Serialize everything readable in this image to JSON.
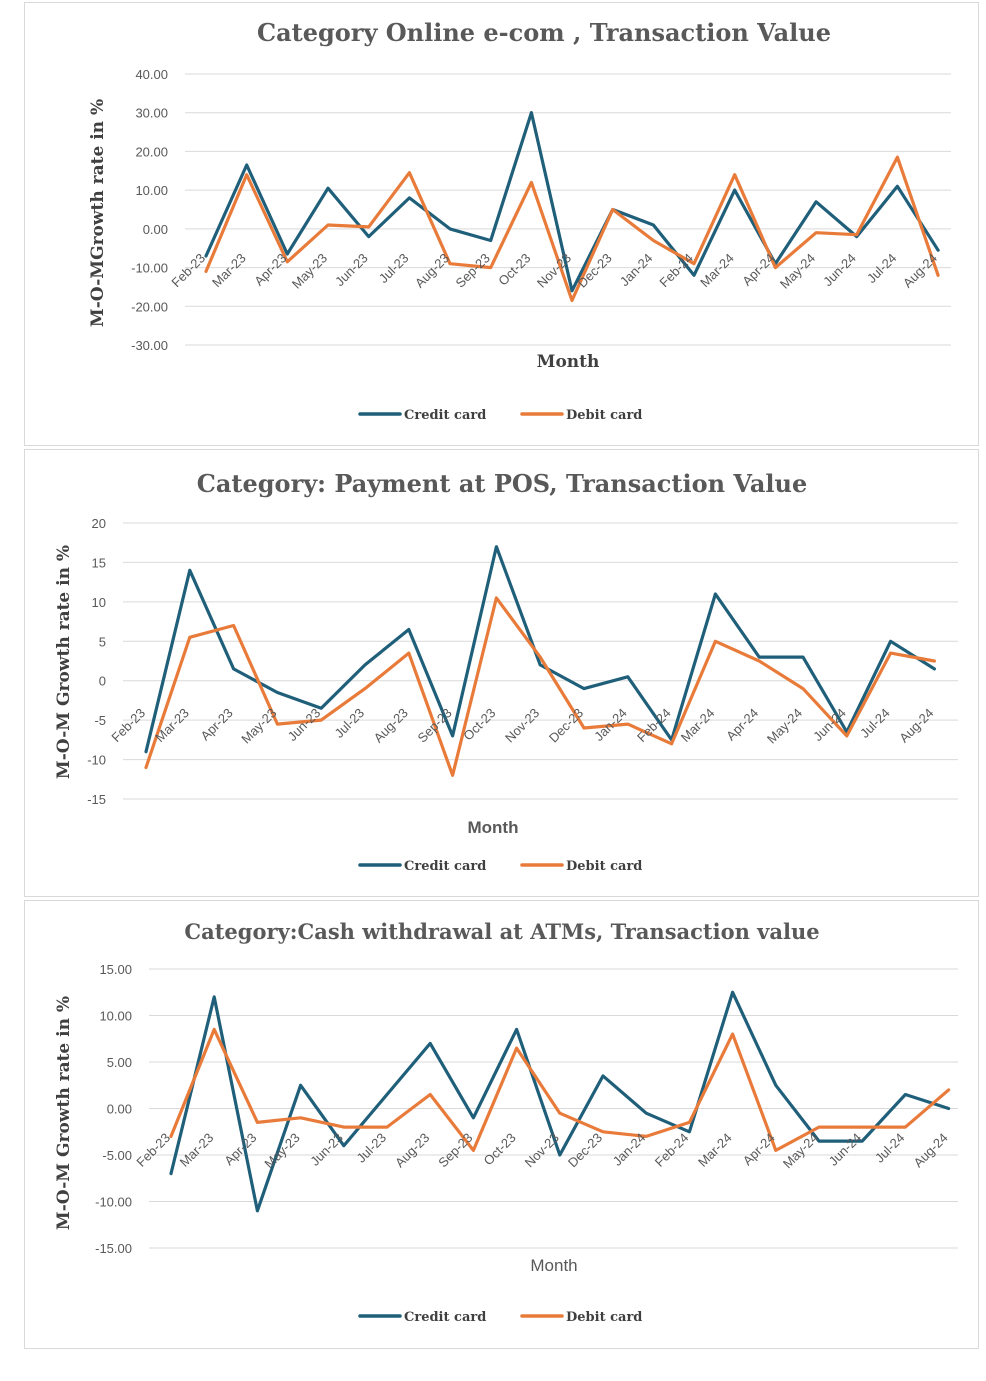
{
  "palette": {
    "credit": "#1f5f7a",
    "debit": "#e97b3a"
  },
  "chart_data": [
    {
      "type": "line",
      "title": "Category Online e-com , Transaction Value",
      "xlabel": "Month",
      "ylabel": "M-O-MGrowth rate in %",
      "ylim": [
        -30,
        40
      ],
      "yticks": [
        40,
        30,
        20,
        10,
        0,
        -10,
        -20,
        -30
      ],
      "ytick_labels": [
        "40.00",
        "30.00",
        "20.00",
        "10.00",
        "0.00",
        "-10.00",
        "-20.00",
        "-30.00"
      ],
      "grid": true,
      "legend": "bottom",
      "categories": [
        "Feb-23",
        "Mar-23",
        "Apr-23",
        "May-23",
        "Jun-23",
        "Jul-23",
        "Aug-23",
        "Sep-23",
        "Oct-23",
        "Nov-23",
        "Dec-23",
        "Jan-24",
        "Feb-24",
        "Mar-24",
        "Apr-24",
        "May-24",
        "Jun-24",
        "Jul-24",
        "Aug-24"
      ],
      "series": [
        {
          "name": "Credit card",
          "color": "#1f5f7a",
          "values": [
            -7,
            16.5,
            -6.5,
            10.5,
            -2,
            8,
            0,
            -3,
            30,
            -16,
            5,
            1,
            -12,
            10,
            -9,
            7,
            -2,
            11,
            -5.5
          ]
        },
        {
          "name": "Debit card",
          "color": "#e97b3a",
          "values": [
            -11,
            14,
            -8.5,
            1,
            0.5,
            14.5,
            -9,
            -10,
            12,
            -18.5,
            5,
            -3,
            -9,
            14,
            -10,
            -1,
            -1.5,
            18.5,
            -12
          ]
        }
      ]
    },
    {
      "type": "line",
      "title": "Category: Payment at POS, Transaction Value",
      "xlabel": "Month",
      "ylabel": "M-O-M Growth rate in %",
      "ylim": [
        -15,
        20
      ],
      "yticks": [
        20,
        15,
        10,
        5,
        0,
        -5,
        -10,
        -15
      ],
      "ytick_labels": [
        "20",
        "15",
        "10",
        "5",
        "0",
        "-5",
        "-10",
        "-15"
      ],
      "grid": true,
      "legend": "bottom",
      "categories": [
        "Feb-23",
        "Mar-23",
        "Apr-23",
        "May-23",
        "Jun-23",
        "Jul-23",
        "Aug-23",
        "Sep-23",
        "Oct-23",
        "Nov-23",
        "Dec-23",
        "Jan-24",
        "Feb-24",
        "Mar-24",
        "Apr-24",
        "May-24",
        "Jun-24",
        "Jul-24",
        "Aug-24"
      ],
      "series": [
        {
          "name": "Credit card",
          "color": "#1f5f7a",
          "values": [
            -9,
            14,
            1.5,
            -1.5,
            -3.5,
            2,
            6.5,
            -7,
            17,
            2,
            -1,
            0.5,
            -7.5,
            11,
            3,
            3,
            -6.5,
            5,
            1.5
          ]
        },
        {
          "name": "Debit card",
          "color": "#e97b3a",
          "values": [
            -11,
            5.5,
            7,
            -5.5,
            -5,
            -1,
            3.5,
            -12,
            10.5,
            3,
            -6,
            -5.5,
            -8,
            5,
            2.5,
            -1,
            -7,
            3.5,
            2.5
          ]
        }
      ]
    },
    {
      "type": "line",
      "title": "Category:Cash withdrawal at ATMs, Transaction value",
      "xlabel": "Month",
      "ylabel": "M-O-M Growth rate in %",
      "ylim": [
        -15,
        15
      ],
      "yticks": [
        15,
        10,
        5,
        0,
        -5,
        -10,
        -15
      ],
      "ytick_labels": [
        "15.00",
        "10.00",
        "5.00",
        "0.00",
        "-5.00",
        "-10.00",
        "-15.00"
      ],
      "grid": true,
      "legend": "bottom",
      "categories": [
        "Feb-23",
        "Mar-23",
        "Apr-23",
        "May-23",
        "Jun-23",
        "Jul-23",
        "Aug-23",
        "Sep-23",
        "Oct-23",
        "Nov-23",
        "Dec-23",
        "Jan-24",
        "Feb-24",
        "Mar-24",
        "Apr-24",
        "May-24",
        "Jun-24",
        "Jul-24",
        "Aug-24"
      ],
      "series": [
        {
          "name": "Credit card",
          "color": "#1f5f7a",
          "values": [
            -7,
            12,
            -11,
            2.5,
            -4,
            1.5,
            7,
            -1,
            8.5,
            -5,
            3.5,
            -0.5,
            -2.5,
            12.5,
            2.5,
            -3.5,
            -3.5,
            1.5,
            0
          ]
        },
        {
          "name": "Debit card",
          "color": "#e97b3a",
          "values": [
            -3,
            8.5,
            -1.5,
            -1,
            -2,
            -2,
            1.5,
            -4.5,
            6.5,
            -0.5,
            -2.5,
            -3,
            -1.5,
            8,
            -4.5,
            -2,
            -2,
            -2,
            2
          ]
        }
      ]
    }
  ]
}
